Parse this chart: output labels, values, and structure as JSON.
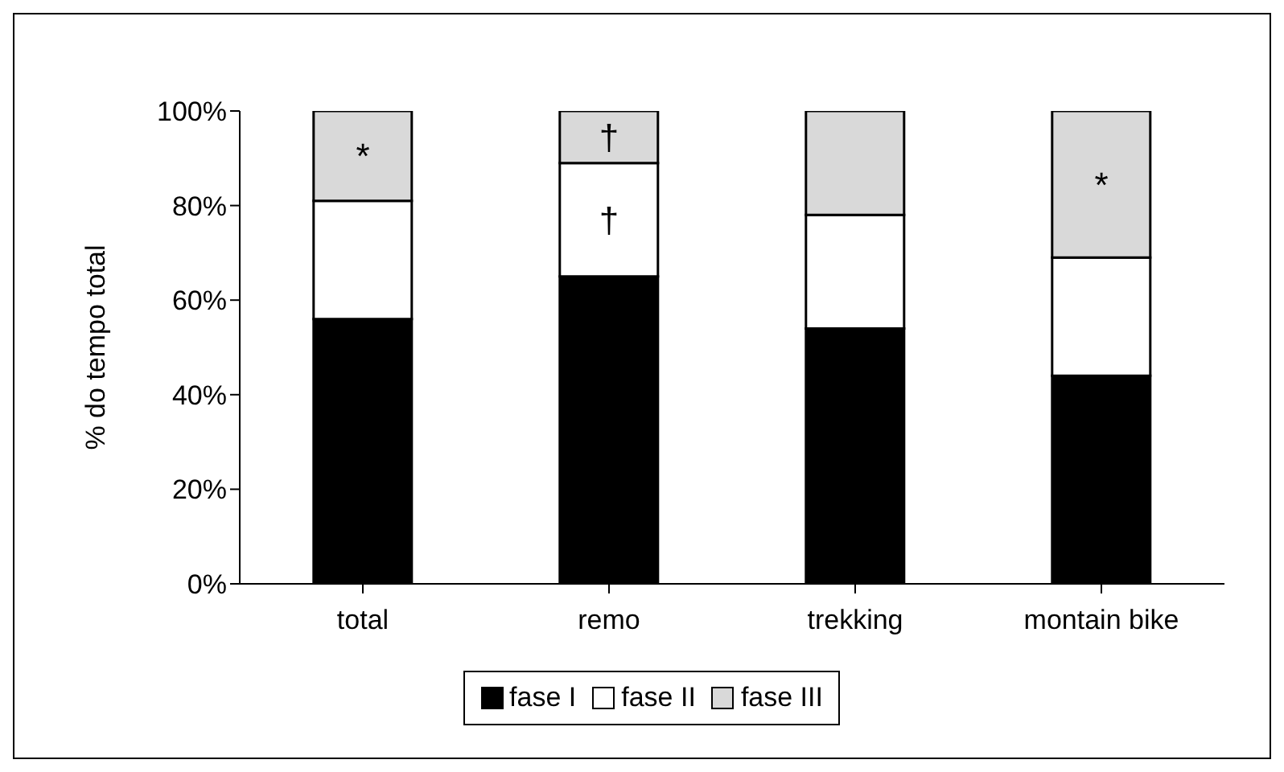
{
  "chart_data": {
    "type": "bar",
    "stacked": true,
    "ylabel": "% do tempo total",
    "categories": [
      "total",
      "remo",
      "trekking",
      "montain bike"
    ],
    "series": [
      {
        "name": "fase I",
        "color": "#000000",
        "values": [
          56,
          65,
          54,
          44
        ]
      },
      {
        "name": "fase II",
        "color": "#ffffff",
        "values": [
          25,
          24,
          24,
          25
        ]
      },
      {
        "name": "fase III",
        "color": "#d9d9d9",
        "values": [
          19,
          11,
          22,
          31
        ]
      }
    ],
    "ylim": [
      0,
      100
    ],
    "yticks": [
      {
        "value": 0,
        "label": "0%"
      },
      {
        "value": 20,
        "label": "20%"
      },
      {
        "value": 40,
        "label": "40%"
      },
      {
        "value": 60,
        "label": "60%"
      },
      {
        "value": 80,
        "label": "80%"
      },
      {
        "value": 100,
        "label": "100%"
      }
    ],
    "annotations": [
      "*",
      "†",
      "†",
      "*"
    ],
    "grid": false,
    "legend": "bottom"
  }
}
